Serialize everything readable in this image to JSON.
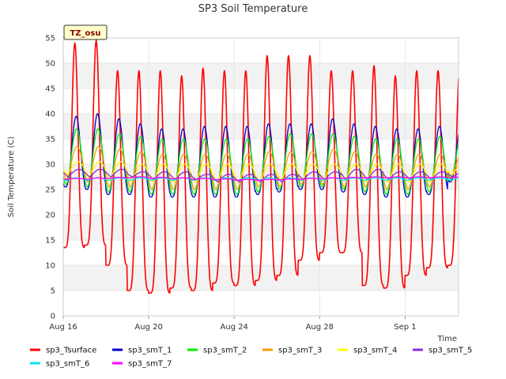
{
  "chart_data": {
    "type": "line",
    "title": "SP3 Soil Temperature",
    "xlabel": "Time",
    "ylabel": "Soil Temperature (C)",
    "ylim": [
      0,
      55
    ],
    "xlim": [
      "2023-08-16",
      "2023-09-03T12:00"
    ],
    "yticks": [
      0,
      5,
      10,
      15,
      20,
      25,
      30,
      35,
      40,
      45,
      50,
      55
    ],
    "xticks": [
      {
        "x": "2023-08-16",
        "label": "Aug 16"
      },
      {
        "x": "2023-08-20",
        "label": "Aug 20"
      },
      {
        "x": "2023-08-24",
        "label": "Aug 24"
      },
      {
        "x": "2023-08-28",
        "label": "Aug 28"
      },
      {
        "x": "2023-09-01",
        "label": "Sep 1"
      }
    ],
    "grid": true,
    "legend_placement": "bottom",
    "annotation": "TZ_osu",
    "days": [
      "Aug 16",
      "Aug 17",
      "Aug 18",
      "Aug 19",
      "Aug 20",
      "Aug 21",
      "Aug 22",
      "Aug 23",
      "Aug 24",
      "Aug 25",
      "Aug 26",
      "Aug 27",
      "Aug 28",
      "Aug 29",
      "Aug 30",
      "Aug 31",
      "Sep 1",
      "Sep 2",
      "Sep 3"
    ],
    "series": [
      {
        "name": "sp3_Tsurface",
        "color": "#ff0000",
        "daily_min": [
          13.5,
          14,
          10,
          5,
          4.5,
          5.5,
          5,
          6.5,
          6,
          7,
          8,
          11,
          12.5,
          12.5,
          6,
          5.5,
          8,
          9.5,
          10
        ],
        "daily_max": [
          54,
          54.5,
          48.5,
          48.5,
          48.5,
          47.5,
          49,
          48.5,
          48.5,
          51.5,
          51.5,
          51.5,
          48.5,
          48.5,
          49.5,
          47.5,
          48.5,
          48.5,
          48.5
        ]
      },
      {
        "name": "sp3_smT_1",
        "color": "#0000cc",
        "daily_min": [
          25.5,
          25,
          24,
          24,
          23.5,
          23.5,
          23.5,
          23.5,
          23.5,
          24,
          24.5,
          25,
          25,
          24.5,
          24,
          23.5,
          23.5,
          24,
          26.5
        ],
        "daily_max": [
          39.5,
          40,
          39,
          38,
          37,
          37,
          37.5,
          37.5,
          37.5,
          38,
          38,
          38,
          39,
          38,
          37.5,
          37,
          37,
          37.5,
          37.5
        ]
      },
      {
        "name": "sp3_smT_2",
        "color": "#00ee00",
        "daily_min": [
          26,
          25.5,
          24.5,
          24.5,
          24,
          24,
          24,
          24,
          24,
          24.5,
          25,
          25.5,
          25.5,
          25,
          24.5,
          24,
          24,
          24.5,
          27
        ],
        "daily_max": [
          37,
          37,
          36,
          35.5,
          35,
          35,
          35,
          35,
          35,
          35.5,
          36,
          36,
          36,
          35.5,
          35,
          35,
          35,
          35.5,
          35.5
        ]
      },
      {
        "name": "sp3_smT_3",
        "color": "#ff9900",
        "daily_min": [
          27,
          26.5,
          25.5,
          25.5,
          25,
          25,
          25,
          25,
          25,
          25.5,
          25.5,
          26,
          26,
          25.5,
          25.5,
          25,
          25,
          25.5,
          27.5
        ],
        "daily_max": [
          33.5,
          33.5,
          33,
          32.5,
          32,
          32,
          32,
          32,
          32,
          32.5,
          32.5,
          32.5,
          33,
          32.5,
          32,
          32,
          32,
          32,
          32
        ]
      },
      {
        "name": "sp3_smT_4",
        "color": "#ffff00",
        "daily_min": [
          28,
          27.5,
          27,
          26.5,
          26.5,
          26.5,
          26.5,
          26.5,
          26.5,
          26.5,
          27,
          27,
          27,
          27,
          26.5,
          26.5,
          26.5,
          26.5,
          28
        ],
        "daily_max": [
          30.5,
          30.5,
          30.5,
          30,
          30,
          30,
          30,
          30,
          30,
          30,
          30,
          30,
          30,
          30,
          30,
          30,
          30,
          30,
          30
        ]
      },
      {
        "name": "sp3_smT_5",
        "color": "#8a2be2",
        "daily_min": [
          27.5,
          27.5,
          27.5,
          27.5,
          27,
          27,
          27,
          26.5,
          26.5,
          26.5,
          26.5,
          27,
          27,
          27,
          27,
          27,
          27,
          27,
          27.5
        ],
        "daily_max": [
          29,
          29,
          29,
          28.5,
          28.5,
          28.5,
          28,
          28,
          28,
          28,
          28,
          28.5,
          28.5,
          29,
          29,
          28.5,
          28.5,
          28.5,
          28.5
        ]
      },
      {
        "name": "sp3_smT_6",
        "color": "#00e5ee",
        "daily_min": [
          26.8,
          26.8,
          26.8,
          26.8,
          26.8,
          26.8,
          26.8,
          26.8,
          26.8,
          26.8,
          26.8,
          26.8,
          26.8,
          26.8,
          26.8,
          26.8,
          26.8,
          26.8,
          26.8
        ],
        "daily_max": [
          27.3,
          27.3,
          27.3,
          27.3,
          27.3,
          27.3,
          27.3,
          27.3,
          27.3,
          27.3,
          27.3,
          27.3,
          27.3,
          27.3,
          27.3,
          27.3,
          27.3,
          27.3,
          27.3
        ]
      },
      {
        "name": "sp3_smT_7",
        "color": "#ff00ff",
        "daily_min": [
          27,
          27,
          27.2,
          27.3,
          27.2,
          27.1,
          27,
          26.9,
          26.8,
          26.8,
          26.9,
          27,
          27.1,
          27.2,
          27.3,
          27.3,
          27.3,
          27.3,
          27.3
        ],
        "daily_max": [
          27.2,
          27.3,
          27.4,
          27.5,
          27.4,
          27.3,
          27.2,
          27.1,
          27,
          27,
          27.1,
          27.2,
          27.3,
          27.4,
          27.5,
          27.5,
          27.5,
          27.5,
          27.5
        ]
      }
    ]
  }
}
